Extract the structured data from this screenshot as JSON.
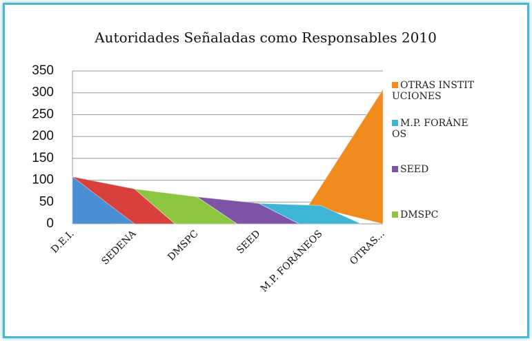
{
  "chart_data": {
    "type": "area3d",
    "title": "Autoridades Señaladas como Responsables 2010",
    "categories": [
      "D.E.I.",
      "SEDENA",
      "DMSPC",
      "SEED",
      "M.P. FORÁNEOS",
      "OTRAS..."
    ],
    "values": [
      108,
      80,
      62,
      47,
      42,
      308
    ],
    "colors": [
      "#4a8fd3",
      "#d8403c",
      "#8cc63e",
      "#7d54a6",
      "#3cb6d4",
      "#f28b1e"
    ],
    "legend": [
      {
        "name": "OTRAS INSTITUCIONES",
        "color": "#f28b1e"
      },
      {
        "name": "M.P. FORÁNEOS",
        "color": "#3cb6d4"
      },
      {
        "name": "SEED",
        "color": "#7d54a6"
      },
      {
        "name": "DMSPC",
        "color": "#8cc63e"
      }
    ],
    "ylim": [
      0,
      350
    ],
    "yticks": [
      0,
      50,
      100,
      150,
      200,
      250,
      300,
      350
    ],
    "grid": true
  }
}
